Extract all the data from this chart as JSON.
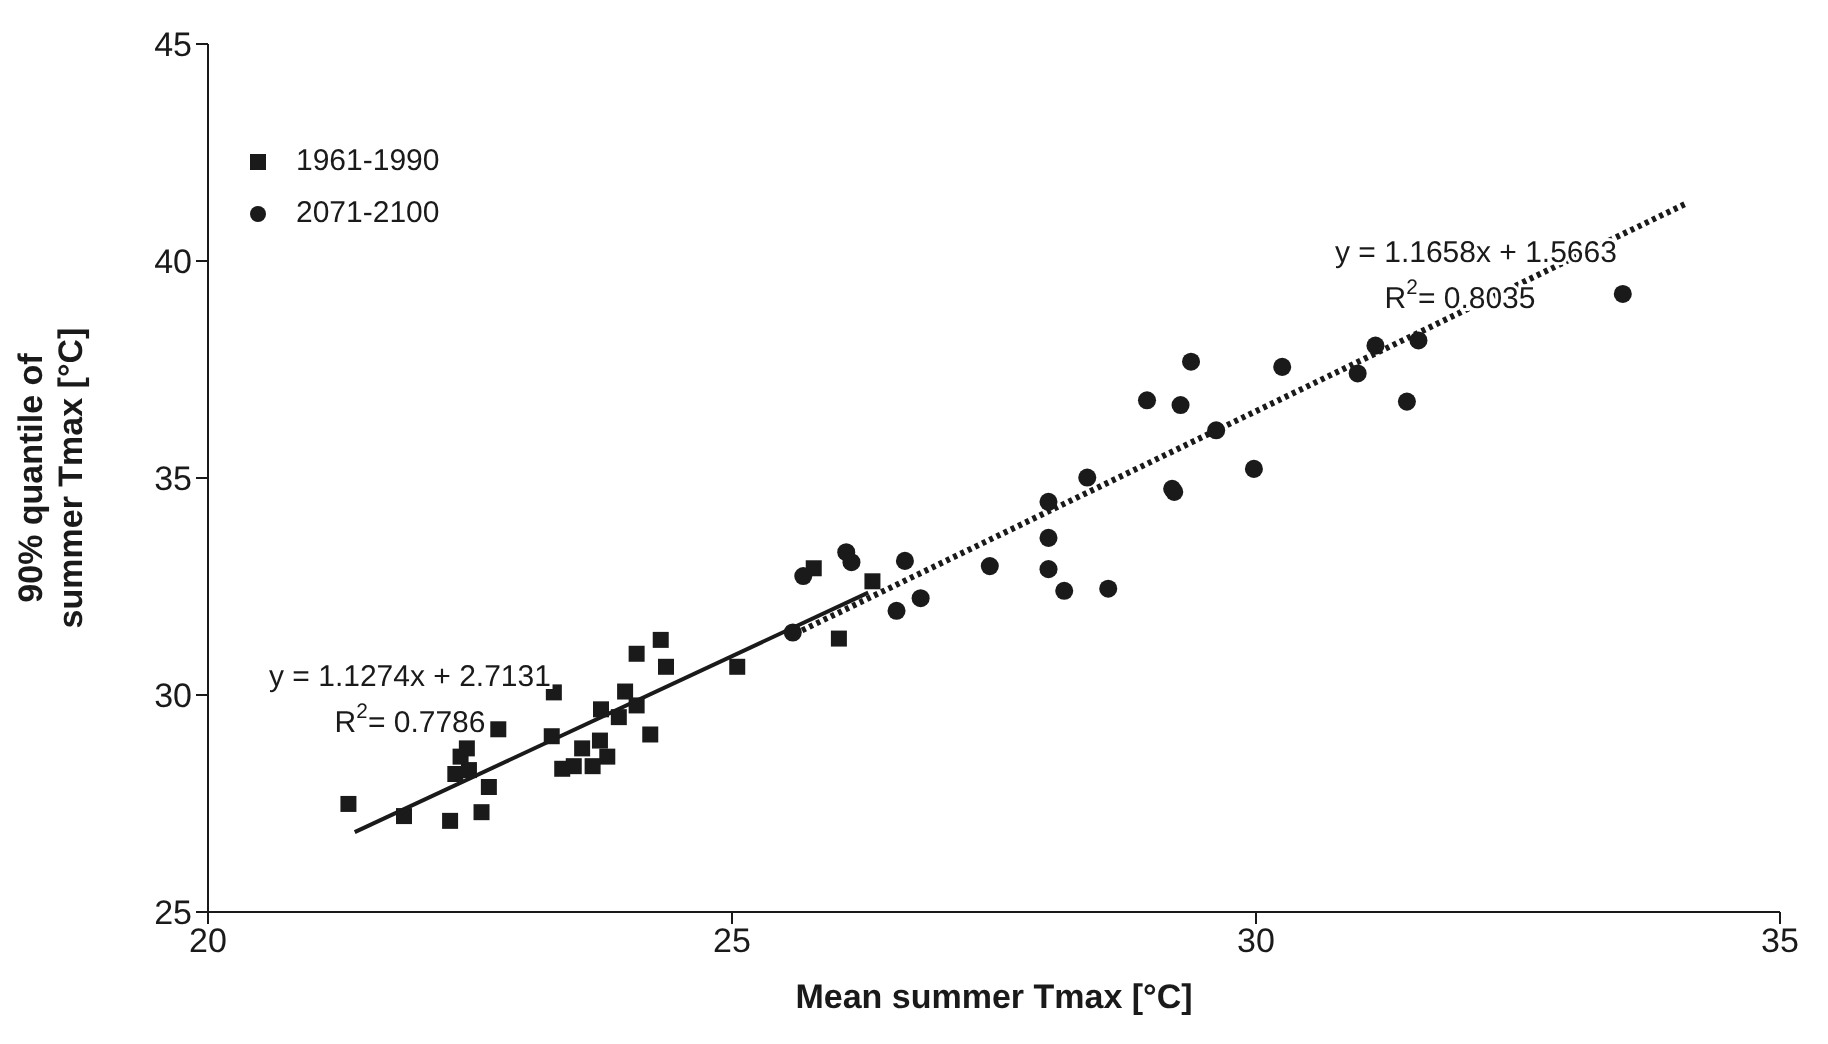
{
  "chart_data": {
    "type": "scatter",
    "xlabel": "Mean summer Tmax [°C]",
    "ylabel": "90% quantile of\nsummer Tmax [°C]",
    "xlim": [
      20,
      35
    ],
    "xticks": [
      20,
      25,
      30,
      35
    ],
    "ylim": [
      25,
      45
    ],
    "yticks": [
      25,
      30,
      35,
      40,
      45
    ],
    "grid": false,
    "legend": "top left",
    "series": [
      {
        "name": "1961-1990",
        "marker": "square",
        "color": "#1a1a1a",
        "x": [
          21.34,
          21.87,
          22.31,
          22.61,
          22.68,
          22.36,
          22.49,
          22.41,
          22.47,
          22.77,
          23.3,
          23.28,
          23.38,
          23.49,
          23.67,
          23.81,
          23.57,
          23.74,
          23.75,
          23.92,
          23.98,
          24.09,
          24.22,
          24.09,
          24.32,
          24.37,
          25.05,
          26.02,
          26.34,
          25.78
        ],
        "values": [
          27.49,
          27.21,
          27.1,
          27.3,
          27.88,
          28.18,
          28.27,
          28.58,
          28.77,
          29.21,
          30.06,
          29.05,
          28.3,
          28.36,
          28.36,
          28.58,
          28.77,
          28.95,
          29.67,
          29.49,
          30.08,
          29.76,
          29.09,
          30.95,
          31.27,
          30.65,
          30.65,
          31.3,
          32.62,
          32.92
        ]
      },
      {
        "name": "2071-2100",
        "marker": "circle",
        "color": "#1a1a1a",
        "x": [
          25.58,
          26.57,
          26.8,
          25.68,
          26.09,
          26.14,
          26.65,
          27.46,
          28.02,
          28.02,
          28.02,
          28.17,
          28.59,
          28.39,
          29.22,
          29.2,
          28.96,
          29.28,
          29.38,
          29.62,
          29.98,
          30.25,
          30.97,
          31.14,
          31.44,
          31.55,
          33.5
        ],
        "values": [
          31.44,
          31.94,
          32.23,
          32.74,
          33.29,
          33.06,
          33.09,
          32.97,
          34.45,
          33.62,
          32.9,
          32.4,
          32.45,
          35.01,
          34.68,
          34.75,
          36.79,
          36.68,
          37.68,
          36.1,
          35.21,
          37.56,
          37.41,
          38.05,
          36.76,
          38.17,
          39.24
        ]
      },
      {
        "type": "line",
        "line_style": "solid",
        "color": "#1a1a1a",
        "x": [
          21.4,
          26.3
        ],
        "values": [
          26.84,
          32.36
        ]
      },
      {
        "type": "line",
        "line_style": "dotted",
        "color": "#1a1a1a",
        "x": [
          25.6,
          34.1
        ],
        "values": [
          31.41,
          41.32
        ]
      }
    ],
    "annotations": [
      "y = 1.1274x + 2.7131",
      "R$^{2}$= 0.7786",
      "y = 1.1658x + 1.5663",
      "R$^{2}$= 0.8035"
    ]
  }
}
